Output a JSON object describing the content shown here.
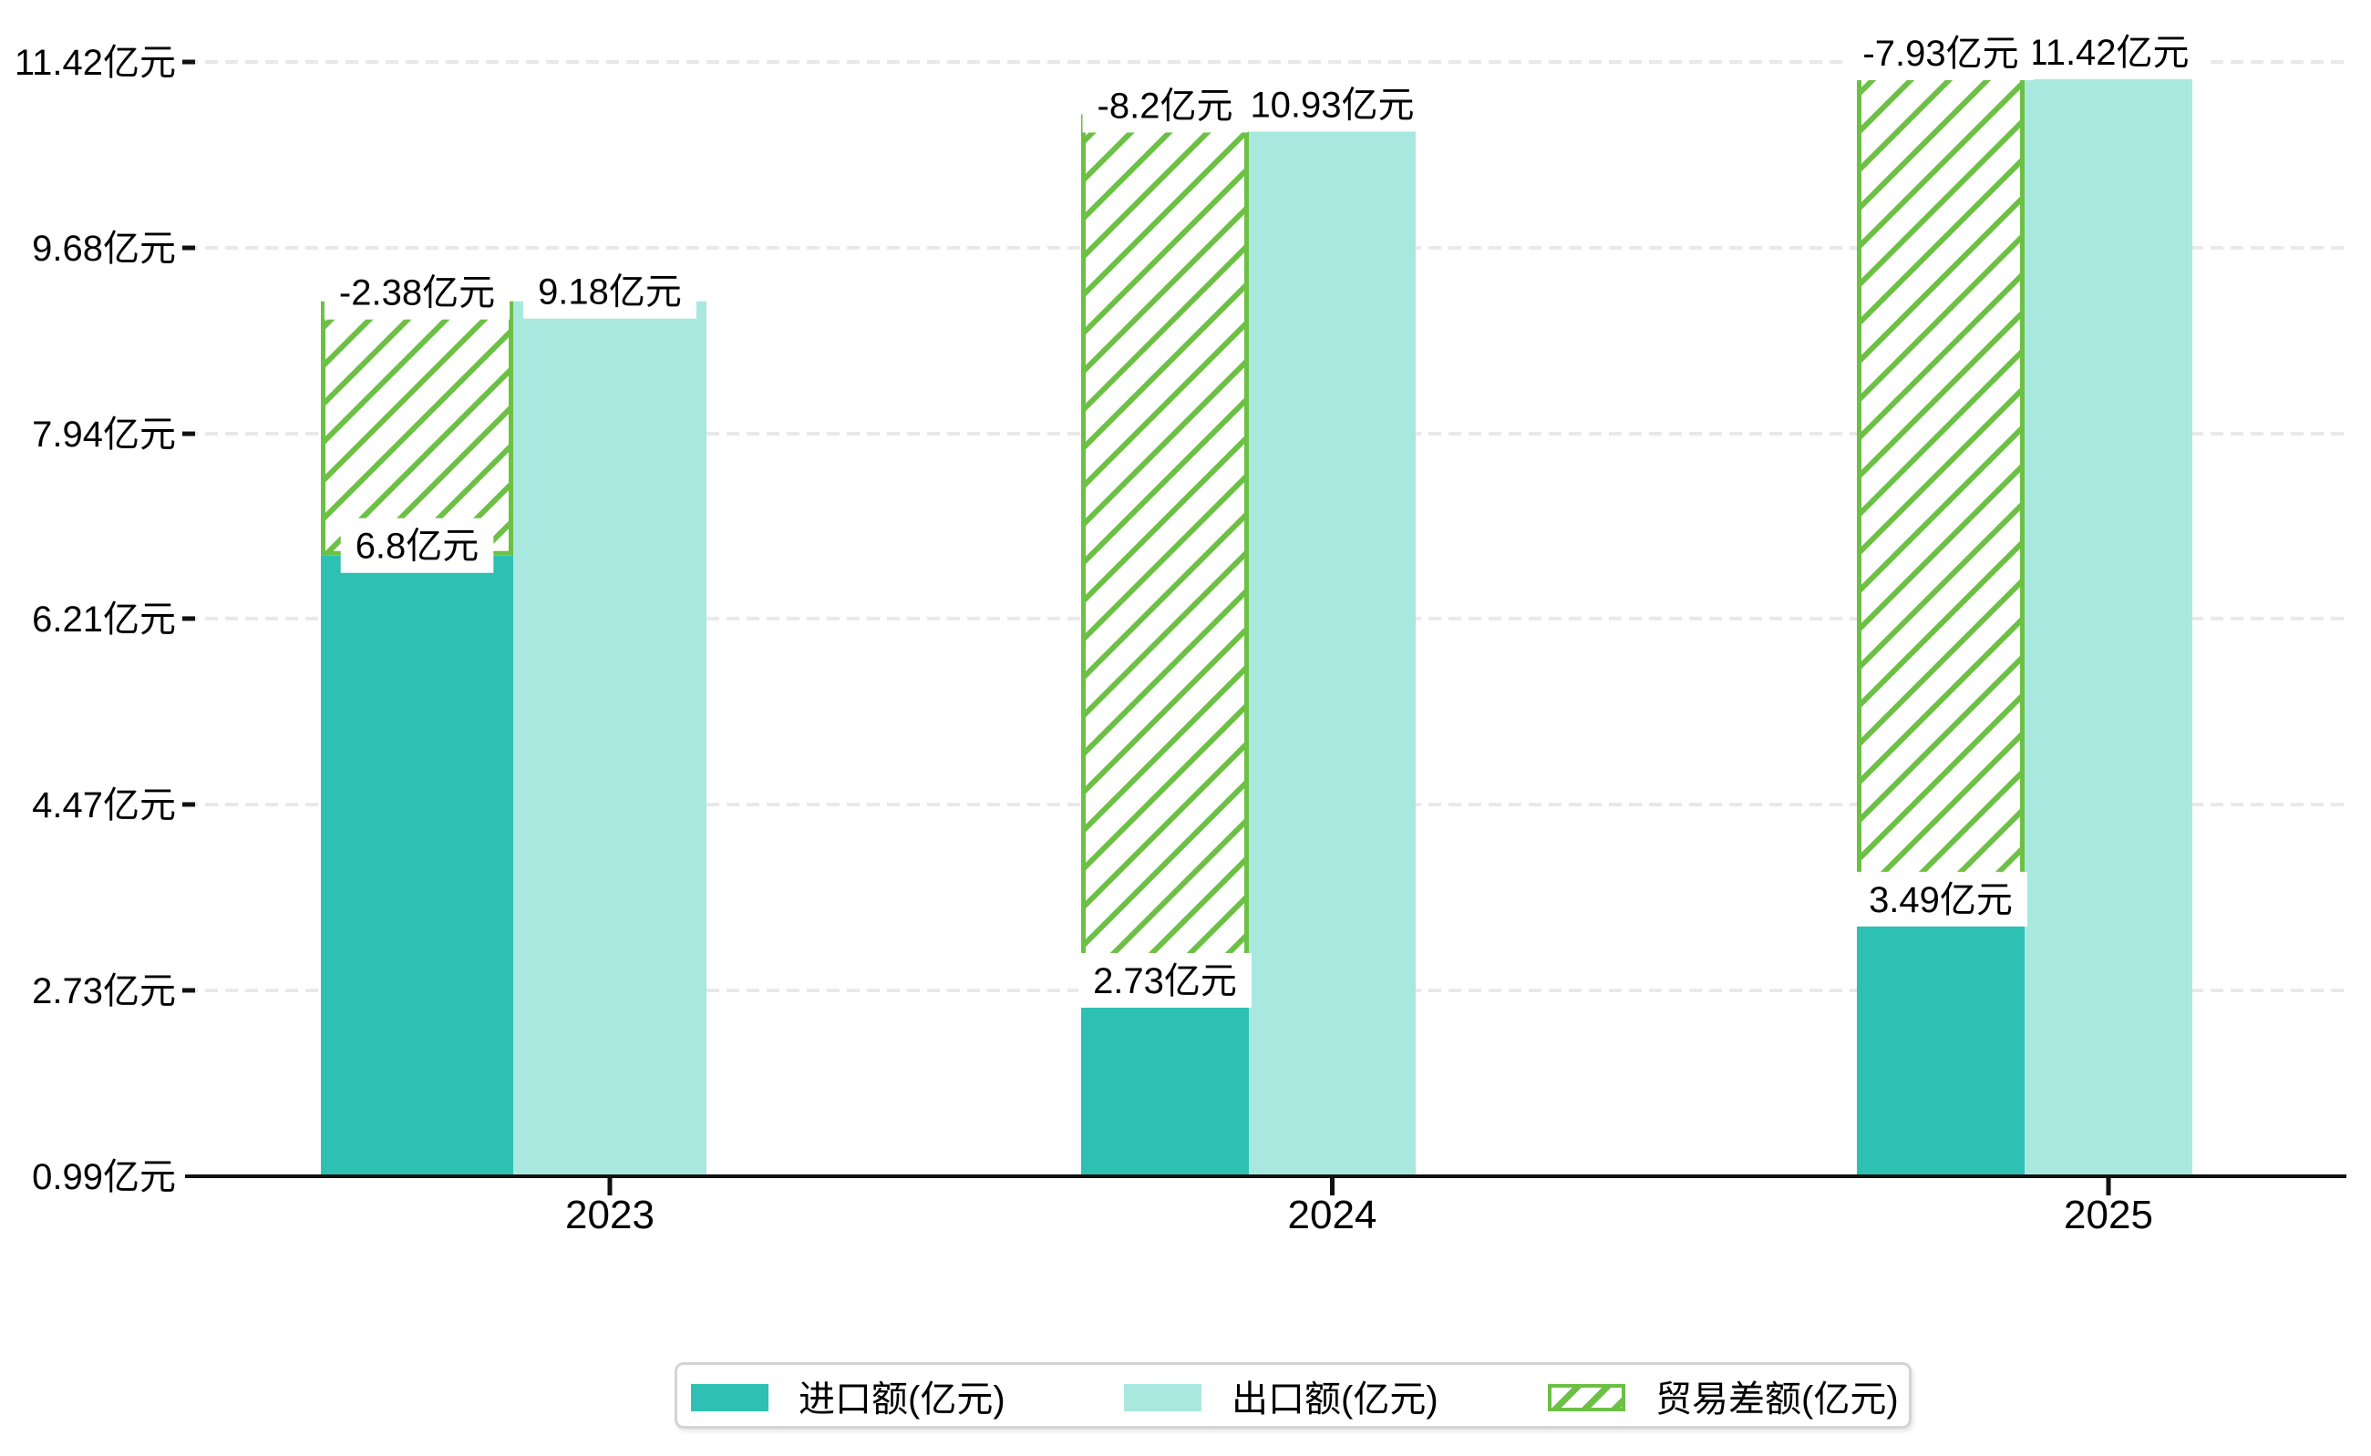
{
  "chart_data": {
    "type": "bar",
    "title": "",
    "unit": "亿元",
    "categories": [
      "2023",
      "2024",
      "2025"
    ],
    "series": [
      {
        "name": "进口额(亿元)",
        "values": [
          6.8,
          2.73,
          3.49
        ],
        "labels": [
          "6.8亿元",
          "2.73亿元",
          "3.49亿元"
        ],
        "color": "#2EC0B2",
        "style": "solid"
      },
      {
        "name": "出口额(亿元)",
        "values": [
          9.18,
          10.93,
          11.42
        ],
        "labels": [
          "9.18亿元",
          "10.93亿元",
          "11.42亿元"
        ],
        "color": "#A9E8DF",
        "style": "solid"
      },
      {
        "name": "贸易差额(亿元)",
        "values": [
          -2.38,
          -8.2,
          -7.93
        ],
        "labels": [
          "-2.38亿元",
          "-8.2亿元",
          "-7.93亿元"
        ],
        "color": "#6CC044",
        "style": "hatched",
        "note": "stacked on top of import bar, height equals absolute trade balance"
      }
    ],
    "y_axis": {
      "min": 0.99,
      "max": 11.42,
      "ticks": [
        0.99,
        2.73,
        4.47,
        6.21,
        7.94,
        9.68,
        11.42
      ],
      "tick_labels": [
        "0.99亿元",
        "2.73亿元",
        "4.47亿元",
        "6.21亿元",
        "7.94亿元",
        "9.68亿元",
        "11.42亿元"
      ]
    },
    "grid": "dashed-horizontal",
    "legend_position": "bottom",
    "colors": {
      "import": "#2EC0B2",
      "export": "#A9E8DF",
      "balance": "#6CC044",
      "gridline": "#E9E9E9",
      "axis": "#111111",
      "label_bg": "#FFFFFF",
      "text": "#000000",
      "legend_border": "#D4D4D4"
    }
  },
  "legend": {
    "items": [
      {
        "label": "进口额(亿元)",
        "swatch": "solid-import"
      },
      {
        "label": "出口额(亿元)",
        "swatch": "solid-export"
      },
      {
        "label": "贸易差额(亿元)",
        "swatch": "hatched-balance"
      }
    ]
  }
}
